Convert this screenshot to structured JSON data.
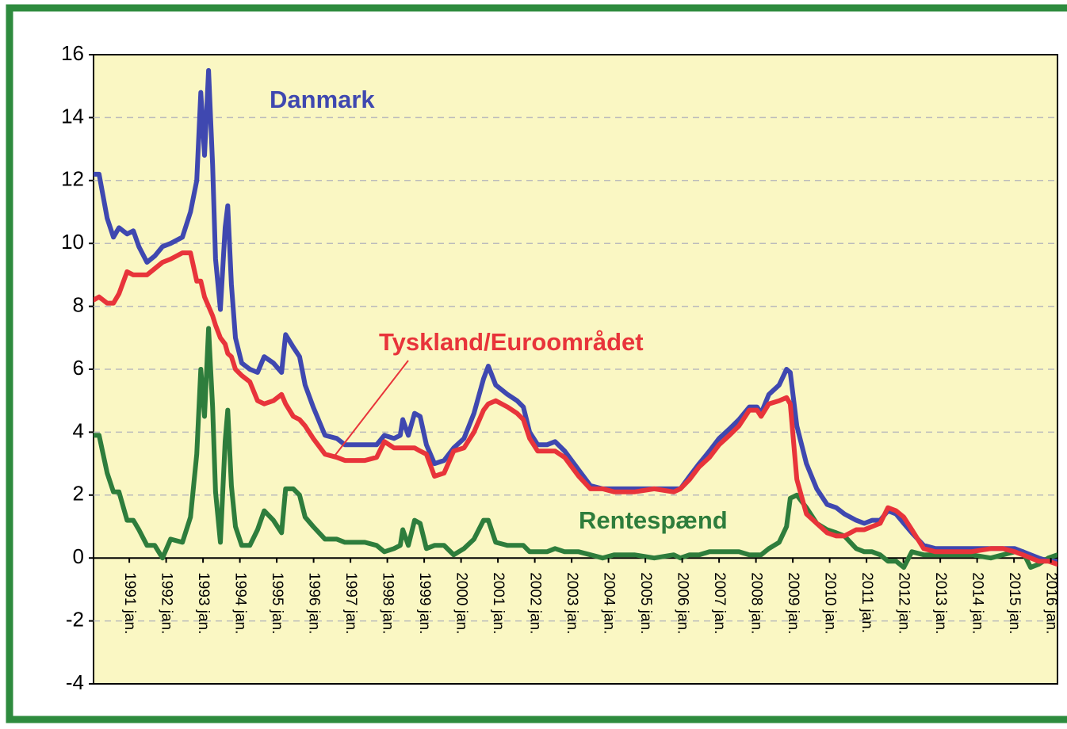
{
  "chart_data": {
    "type": "line",
    "x": [
      1990.03,
      1990.18,
      1990.4,
      1990.57,
      1990.72,
      1990.94,
      1991.11,
      1991.26,
      1991.48,
      1991.69,
      1991.9,
      1992.12,
      1992.44,
      1992.66,
      1992.83,
      1992.94,
      1993.04,
      1993.15,
      1993.26,
      1993.34,
      1993.47,
      1993.6,
      1993.67,
      1993.77,
      1993.88,
      1994.05,
      1994.27,
      1994.48,
      1994.66,
      1994.91,
      1995.13,
      1995.24,
      1995.45,
      1995.62,
      1995.77,
      1995.99,
      1996.31,
      1996.63,
      1996.85,
      1997.39,
      1997.71,
      1997.92,
      1998.18,
      1998.35,
      1998.42,
      1998.57,
      1998.74,
      1998.89,
      1999.06,
      1999.28,
      1999.54,
      1999.8,
      2000.08,
      2000.35,
      2000.61,
      2000.74,
      2000.94,
      2001.26,
      2001.52,
      2001.69,
      2001.86,
      2002.08,
      2002.33,
      2002.55,
      2002.81,
      2003.19,
      2003.51,
      2003.84,
      2004.16,
      2004.7,
      2005.24,
      2005.77,
      2005.95,
      2006.2,
      2006.46,
      2006.74,
      2007.0,
      2007.28,
      2007.54,
      2007.82,
      2008.03,
      2008.14,
      2008.35,
      2008.63,
      2008.83,
      2008.93,
      2009.11,
      2009.37,
      2009.65,
      2009.93,
      2010.18,
      2010.4,
      2010.72,
      2010.94,
      2011.15,
      2011.37,
      2011.58,
      2011.8,
      2012.01,
      2012.23,
      2012.55,
      2012.87,
      2013.3,
      2013.84,
      2014.37,
      2014.7,
      2015.02,
      2015.24,
      2015.45,
      2015.67,
      2015.93,
      2016.18
    ],
    "series": [
      {
        "name": "Danmark",
        "color": "#3f48b0",
        "values": [
          12.2,
          12.2,
          10.8,
          10.2,
          10.5,
          10.3,
          10.4,
          9.9,
          9.4,
          9.6,
          9.9,
          10.0,
          10.2,
          11.0,
          12.0,
          14.8,
          12.8,
          15.5,
          12.5,
          9.5,
          7.9,
          10.5,
          11.2,
          8.7,
          7.0,
          6.2,
          6.0,
          5.9,
          6.4,
          6.2,
          5.9,
          7.1,
          6.7,
          6.4,
          5.5,
          4.8,
          3.9,
          3.8,
          3.6,
          3.6,
          3.6,
          3.9,
          3.8,
          3.9,
          4.4,
          3.9,
          4.6,
          4.5,
          3.6,
          3.0,
          3.1,
          3.5,
          3.8,
          4.6,
          5.7,
          6.1,
          5.5,
          5.2,
          5.0,
          4.8,
          4.0,
          3.6,
          3.6,
          3.7,
          3.4,
          2.8,
          2.3,
          2.2,
          2.2,
          2.2,
          2.2,
          2.2,
          2.2,
          2.6,
          3.0,
          3.4,
          3.8,
          4.1,
          4.4,
          4.8,
          4.8,
          4.6,
          5.2,
          5.5,
          6.0,
          5.9,
          4.2,
          3.0,
          2.2,
          1.7,
          1.6,
          1.4,
          1.2,
          1.1,
          1.2,
          1.2,
          1.5,
          1.4,
          1.1,
          0.8,
          0.4,
          0.3,
          0.3,
          0.3,
          0.3,
          0.3,
          0.3,
          0.2,
          0.1,
          0.0,
          -0.1,
          -0.1
        ]
      },
      {
        "name": "Tyskland/Euroområdet",
        "color": "#e8343a",
        "values": [
          8.2,
          8.3,
          8.1,
          8.1,
          8.4,
          9.1,
          9.0,
          9.0,
          9.0,
          9.2,
          9.4,
          9.5,
          9.7,
          9.7,
          8.8,
          8.8,
          8.3,
          8.0,
          7.7,
          7.4,
          7.0,
          6.8,
          6.5,
          6.4,
          6.0,
          5.8,
          5.6,
          5.0,
          4.9,
          5.0,
          5.2,
          4.9,
          4.5,
          4.4,
          4.2,
          3.8,
          3.3,
          3.2,
          3.1,
          3.1,
          3.2,
          3.7,
          3.5,
          3.5,
          3.5,
          3.5,
          3.5,
          3.4,
          3.3,
          2.6,
          2.7,
          3.4,
          3.5,
          4.0,
          4.7,
          4.9,
          5.0,
          4.8,
          4.6,
          4.4,
          3.8,
          3.4,
          3.4,
          3.4,
          3.2,
          2.6,
          2.2,
          2.2,
          2.1,
          2.1,
          2.2,
          2.1,
          2.2,
          2.5,
          2.9,
          3.2,
          3.6,
          3.9,
          4.2,
          4.7,
          4.7,
          4.5,
          4.9,
          5.0,
          5.1,
          4.9,
          2.5,
          1.4,
          1.1,
          0.8,
          0.7,
          0.7,
          0.9,
          0.9,
          1.0,
          1.1,
          1.6,
          1.5,
          1.3,
          0.9,
          0.3,
          0.2,
          0.2,
          0.2,
          0.3,
          0.3,
          0.2,
          0.1,
          0.0,
          -0.1,
          -0.1,
          -0.2
        ]
      },
      {
        "name": "Rentespænd",
        "color": "#2e7d3c",
        "values": [
          3.9,
          3.9,
          2.7,
          2.1,
          2.1,
          1.2,
          1.2,
          0.9,
          0.4,
          0.4,
          0.0,
          0.6,
          0.5,
          1.3,
          3.3,
          6.0,
          4.5,
          7.3,
          4.8,
          2.1,
          0.5,
          3.7,
          4.7,
          2.3,
          1.0,
          0.4,
          0.4,
          0.9,
          1.5,
          1.2,
          0.8,
          2.2,
          2.2,
          2.0,
          1.3,
          1.0,
          0.6,
          0.6,
          0.5,
          0.5,
          0.4,
          0.2,
          0.3,
          0.4,
          0.9,
          0.4,
          1.2,
          1.1,
          0.3,
          0.4,
          0.4,
          0.1,
          0.3,
          0.6,
          1.2,
          1.2,
          0.5,
          0.4,
          0.4,
          0.4,
          0.2,
          0.2,
          0.2,
          0.3,
          0.2,
          0.2,
          0.1,
          0.0,
          0.1,
          0.1,
          0.0,
          0.1,
          0.0,
          0.1,
          0.1,
          0.2,
          0.2,
          0.2,
          0.2,
          0.1,
          0.1,
          0.1,
          0.3,
          0.5,
          1.0,
          1.9,
          2.0,
          1.6,
          1.1,
          0.9,
          0.8,
          0.7,
          0.3,
          0.2,
          0.2,
          0.1,
          -0.1,
          -0.1,
          -0.3,
          0.2,
          0.1,
          0.1,
          0.1,
          0.1,
          0.0,
          0.1,
          0.2,
          0.2,
          -0.3,
          -0.2,
          0.0,
          0.1
        ]
      }
    ],
    "xlim": [
      1990.03,
      2016.18
    ],
    "xticks": [
      {
        "value": 1991,
        "label": "1991 jan."
      },
      {
        "value": 1992,
        "label": "1992 jan."
      },
      {
        "value": 1993,
        "label": "1993 jan."
      },
      {
        "value": 1994,
        "label": "1994 jan."
      },
      {
        "value": 1995,
        "label": "1995 jan."
      },
      {
        "value": 1996,
        "label": "1996 jan."
      },
      {
        "value": 1997,
        "label": "1997 jan."
      },
      {
        "value": 1998,
        "label": "1998 jan."
      },
      {
        "value": 1999,
        "label": "1999 jan."
      },
      {
        "value": 2000,
        "label": "2000 jan."
      },
      {
        "value": 2001,
        "label": "2001 jan."
      },
      {
        "value": 2002,
        "label": "2002 jan."
      },
      {
        "value": 2003,
        "label": "2003 jan."
      },
      {
        "value": 2004,
        "label": "2004 jan."
      },
      {
        "value": 2005,
        "label": "2005 jan."
      },
      {
        "value": 2006,
        "label": "2006 jan."
      },
      {
        "value": 2007,
        "label": "2007 jan."
      },
      {
        "value": 2008,
        "label": "2008 jan."
      },
      {
        "value": 2009,
        "label": "2009 jan."
      },
      {
        "value": 2010,
        "label": "2010 jan."
      },
      {
        "value": 2011,
        "label": "2011 jan."
      },
      {
        "value": 2012,
        "label": "2012 jan."
      },
      {
        "value": 2013,
        "label": "2013 jan."
      },
      {
        "value": 2014,
        "label": "2014 jan."
      },
      {
        "value": 2015,
        "label": "2015 jan."
      },
      {
        "value": 2016,
        "label": "2016 jan."
      }
    ],
    "ylim": [
      -4,
      16
    ],
    "yticks": [
      -4,
      -2,
      0,
      2,
      4,
      6,
      8,
      10,
      12,
      14,
      16
    ],
    "grid": true
  }
}
